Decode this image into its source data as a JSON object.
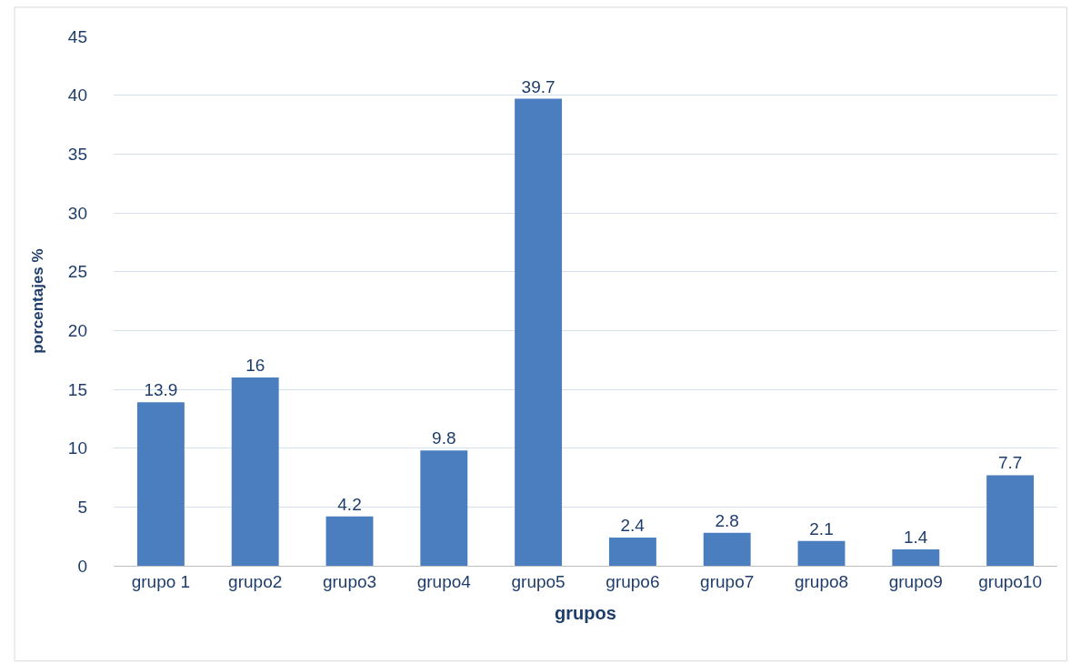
{
  "chart_data": {
    "type": "bar",
    "xlabel": "grupos",
    "ylabel": "porcentajes %",
    "categories": [
      "grupo 1",
      "grupo2",
      "grupo3",
      "grupo4",
      "grupo5",
      "grupo6",
      "grupo7",
      "grupo8",
      "grupo9",
      "grupo10"
    ],
    "values": [
      13.9,
      16,
      4.2,
      9.8,
      39.7,
      2.4,
      2.8,
      2.1,
      1.4,
      7.7
    ],
    "color": "#4a7ebf",
    "ylim": [
      0,
      45
    ],
    "yticks": [
      0,
      5,
      10,
      15,
      20,
      25,
      30,
      35,
      40,
      45
    ],
    "grid": "y",
    "data_labels": true
  }
}
